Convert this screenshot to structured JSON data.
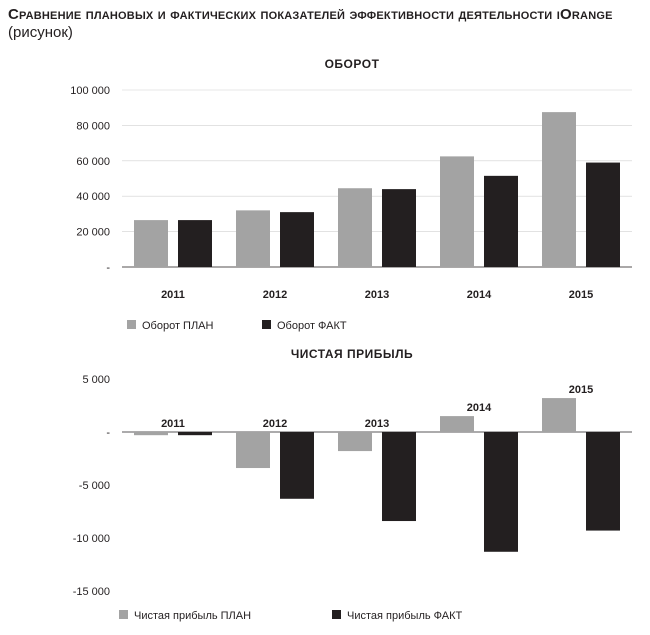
{
  "page": {
    "title_bold": "Сравнение плановых и фактических показателей эффективности деятельности iOrange",
    "title_normal": "(рисунок)"
  },
  "colors": {
    "plan": "#a3a3a3",
    "fact": "#231f20",
    "axis": "#231f20",
    "grid": "#d0d0d0"
  },
  "chart_data": [
    {
      "type": "bar",
      "title": "ОБОРОТ",
      "categories": [
        "2011",
        "2012",
        "2013",
        "2014",
        "2015"
      ],
      "series": [
        {
          "name": "Оборот ПЛАН",
          "values": [
            26500,
            32000,
            44500,
            62500,
            87500
          ]
        },
        {
          "name": "Оборот ФАКТ",
          "values": [
            26500,
            31000,
            44000,
            51500,
            59000
          ]
        }
      ],
      "ylim": [
        0,
        100000
      ],
      "yticks": [
        0,
        20000,
        40000,
        60000,
        80000,
        100000
      ],
      "ytick_labels": [
        "-",
        "20 000",
        "40 000",
        "60 000",
        "80 000",
        "100 000"
      ],
      "legend_position": "bottom-left",
      "grid": true
    },
    {
      "type": "bar",
      "title": "ЧИСТАЯ ПРИБЫЛЬ",
      "categories": [
        "2011",
        "2012",
        "2013",
        "2014",
        "2015"
      ],
      "series": [
        {
          "name": "Чистая прибыль ПЛАН",
          "values": [
            -300,
            -3400,
            -1800,
            1500,
            3200
          ]
        },
        {
          "name": "Чистая прибыль ФАКТ",
          "values": [
            -300,
            -6300,
            -8400,
            -11300,
            -9300
          ]
        }
      ],
      "ylim": [
        -15000,
        5000
      ],
      "yticks": [
        -15000,
        -10000,
        -5000,
        0,
        5000
      ],
      "ytick_labels": [
        "-15 000",
        "-10 000",
        "-5 000",
        "-",
        "5 000"
      ],
      "legend_position": "bottom-left",
      "grid": false
    }
  ]
}
